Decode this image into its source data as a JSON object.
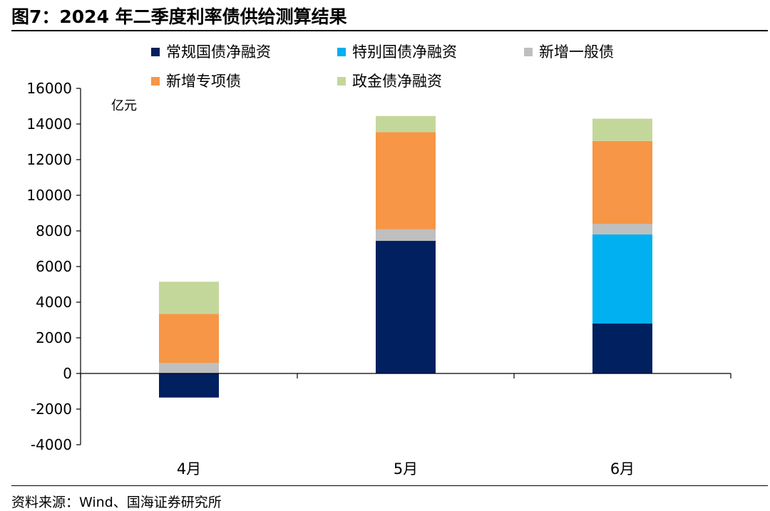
{
  "figure": {
    "title": "图7：2024 年二季度利率债供给测算结果",
    "source": "资料来源：Wind、国海证券研究所"
  },
  "colors": {
    "常规国债净融资": "#002060",
    "特别国债净融资": "#00b0f0",
    "新增一般债": "#bfbfbf",
    "新增专项债": "#f79646",
    "政金债净融资": "#c4d79b"
  },
  "chart_data": {
    "type": "bar",
    "stacked": true,
    "categories": [
      "4月",
      "5月",
      "6月"
    ],
    "series": [
      {
        "name": "常规国债净融资",
        "values": [
          -1350,
          7450,
          2800
        ]
      },
      {
        "name": "特别国债净融资",
        "values": [
          0,
          0,
          5000
        ]
      },
      {
        "name": "新增一般债",
        "values": [
          600,
          650,
          600
        ]
      },
      {
        "name": "新增专项债",
        "values": [
          2750,
          5450,
          4650
        ]
      },
      {
        "name": "政金债净融资",
        "values": [
          1800,
          900,
          1250
        ]
      }
    ],
    "unit_label": "亿元",
    "ylim": [
      -4000,
      16000
    ],
    "yticks": [
      -4000,
      -2000,
      0,
      2000,
      4000,
      6000,
      8000,
      10000,
      12000,
      14000,
      16000
    ],
    "legend_position": "top",
    "grid": false
  }
}
